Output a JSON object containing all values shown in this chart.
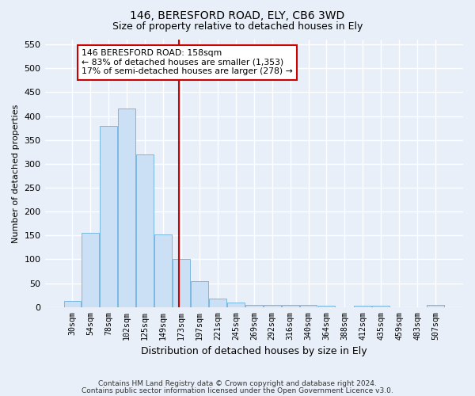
{
  "title1": "146, BERESFORD ROAD, ELY, CB6 3WD",
  "title2": "Size of property relative to detached houses in Ely",
  "xlabel": "Distribution of detached houses by size in Ely",
  "ylabel": "Number of detached properties",
  "bar_color": "#cce0f5",
  "bar_edge_color": "#7ab8e0",
  "background_color": "#e8eff8",
  "fig_background": "#e8eff8",
  "grid_color": "#ffffff",
  "categories": [
    "30sqm",
    "54sqm",
    "78sqm",
    "102sqm",
    "125sqm",
    "149sqm",
    "173sqm",
    "197sqm",
    "221sqm",
    "245sqm",
    "269sqm",
    "292sqm",
    "316sqm",
    "340sqm",
    "364sqm",
    "388sqm",
    "412sqm",
    "435sqm",
    "459sqm",
    "483sqm",
    "507sqm"
  ],
  "values": [
    13,
    155,
    380,
    415,
    320,
    153,
    100,
    54,
    18,
    10,
    5,
    4,
    4,
    4,
    3,
    0,
    3,
    3,
    0,
    0,
    4
  ],
  "vline_x": 5.85,
  "vline_color": "#cc0000",
  "annotation_line1": "146 BERESFORD ROAD: 158sqm",
  "annotation_line2": "← 83% of detached houses are smaller (1,353)",
  "annotation_line3": "17% of semi-detached houses are larger (278) →",
  "ylim": [
    0,
    560
  ],
  "yticks": [
    0,
    50,
    100,
    150,
    200,
    250,
    300,
    350,
    400,
    450,
    500,
    550
  ],
  "footer1": "Contains HM Land Registry data © Crown copyright and database right 2024.",
  "footer2": "Contains public sector information licensed under the Open Government Licence v3.0."
}
